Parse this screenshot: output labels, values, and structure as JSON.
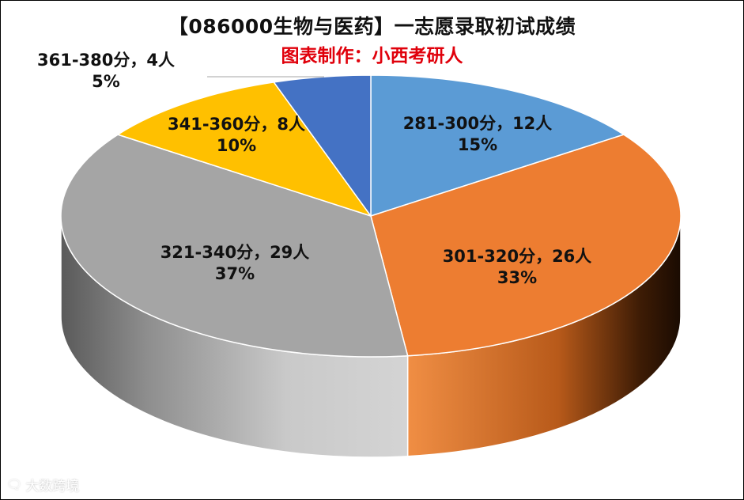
{
  "chart_data": {
    "type": "pie",
    "title": "【086000生物与医药】一志愿录取初试成绩",
    "subtitle": "图表制作：小西考研人",
    "slices": [
      {
        "label": "281-300分",
        "count": "12人",
        "percent": "15%",
        "value": 12,
        "color": "#5b9bd5",
        "label_line": "281-300分，12人"
      },
      {
        "label": "301-320分",
        "count": "26人",
        "percent": "33%",
        "value": 26,
        "color": "#ed7d31",
        "label_line": "301-320分，26人"
      },
      {
        "label": "321-340分",
        "count": "29人",
        "percent": "37%",
        "value": 29,
        "color": "#a5a5a5",
        "label_line": "321-340分，29人"
      },
      {
        "label": "341-360分",
        "count": "8人",
        "percent": "10%",
        "value": 8,
        "color": "#ffc000",
        "label_line": "341-360分，8人"
      },
      {
        "label": "361-380分",
        "count": "4人",
        "percent": "5%",
        "value": 4,
        "color": "#4472c4",
        "label_line": "361-380分，4人"
      }
    ],
    "style": "3d-pie",
    "legend": "none"
  },
  "watermark": {
    "text": "大数跨境",
    "icon": "speech-bubble-icon"
  }
}
